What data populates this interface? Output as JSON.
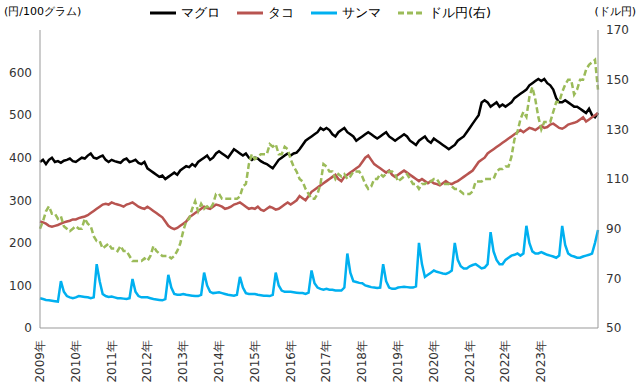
{
  "chart_data": {
    "type": "line",
    "ylabel": "(円/100グラム)",
    "y2label": "(ドル円)",
    "categories": [
      "2009年",
      null,
      null,
      null,
      null,
      null,
      null,
      null,
      null,
      null,
      null,
      null,
      "2010年",
      null,
      null,
      null,
      null,
      null,
      null,
      null,
      null,
      null,
      null,
      null,
      "2011年",
      null,
      null,
      null,
      null,
      null,
      null,
      null,
      null,
      null,
      null,
      null,
      "2012年",
      null,
      null,
      null,
      null,
      null,
      null,
      null,
      null,
      null,
      null,
      null,
      "2013年",
      null,
      null,
      null,
      null,
      null,
      null,
      null,
      null,
      null,
      null,
      null,
      "2014年",
      null,
      null,
      null,
      null,
      null,
      null,
      null,
      null,
      null,
      null,
      null,
      "2015年",
      null,
      null,
      null,
      null,
      null,
      null,
      null,
      null,
      null,
      null,
      null,
      "2016年",
      null,
      null,
      null,
      null,
      null,
      null,
      null,
      null,
      null,
      null,
      null,
      "2017年",
      null,
      null,
      null,
      null,
      null,
      null,
      null,
      null,
      null,
      null,
      null,
      "2018年",
      null,
      null,
      null,
      null,
      null,
      null,
      null,
      null,
      null,
      null,
      null,
      "2019年",
      null,
      null,
      null,
      null,
      null,
      null,
      null,
      null,
      null,
      null,
      null,
      "2020年",
      null,
      null,
      null,
      null,
      null,
      null,
      null,
      null,
      null,
      null,
      null,
      "2021年",
      null,
      null,
      null,
      null,
      null,
      null,
      null,
      null,
      null,
      null,
      null,
      "2022年",
      null,
      null,
      null,
      null,
      null,
      null,
      null,
      null,
      null,
      null,
      null,
      "2023年",
      null,
      null,
      null,
      null,
      null,
      null,
      null,
      null,
      null,
      null,
      null,
      null,
      null,
      null,
      null,
      null,
      null,
      null,
      null
    ],
    "series": [
      {
        "name": "マグロ",
        "color": "#000000",
        "line_style": "solid",
        "values": [
          390,
          395,
          385,
          395,
          400,
          390,
          392,
          388,
          393,
          395,
          398,
          392,
          390,
          395,
          400,
          398,
          405,
          410,
          400,
          398,
          402,
          405,
          395,
          390,
          395,
          392,
          390,
          388,
          395,
          398,
          390,
          392,
          395,
          388,
          385,
          390,
          375,
          370,
          365,
          360,
          355,
          358,
          350,
          355,
          360,
          365,
          360,
          370,
          375,
          380,
          378,
          385,
          380,
          390,
          395,
          400,
          405,
          395,
          400,
          410,
          415,
          410,
          405,
          400,
          410,
          420,
          415,
          410,
          405,
          410,
          400,
          395,
          400,
          398,
          392,
          388,
          385,
          380,
          375,
          385,
          395,
          400,
          405,
          410,
          405,
          410,
          412,
          420,
          430,
          440,
          445,
          450,
          455,
          460,
          470,
          465,
          470,
          465,
          455,
          450,
          460,
          465,
          470,
          460,
          455,
          450,
          440,
          445,
          450,
          455,
          460,
          455,
          450,
          445,
          450,
          455,
          460,
          450,
          445,
          440,
          445,
          450,
          455,
          450,
          440,
          435,
          430,
          440,
          445,
          450,
          440,
          435,
          445,
          440,
          435,
          430,
          425,
          420,
          425,
          430,
          440,
          445,
          450,
          460,
          470,
          480,
          490,
          500,
          530,
          535,
          530,
          520,
          525,
          530,
          520,
          525,
          520,
          525,
          530,
          540,
          545,
          550,
          555,
          560,
          570,
          575,
          580,
          585,
          580,
          585,
          575,
          570,
          560,
          540,
          530,
          530,
          535,
          530,
          525,
          520,
          520,
          515,
          510,
          505,
          515,
          500,
          495,
          505
        ]
      },
      {
        "name": "タコ",
        "color": "#b85450",
        "line_style": "solid",
        "values": [
          250,
          248,
          245,
          240,
          238,
          240,
          242,
          245,
          248,
          250,
          252,
          255,
          255,
          258,
          260,
          262,
          265,
          270,
          275,
          280,
          285,
          290,
          292,
          290,
          295,
          292,
          290,
          288,
          285,
          290,
          292,
          295,
          290,
          285,
          282,
          280,
          285,
          280,
          275,
          270,
          265,
          260,
          250,
          240,
          235,
          232,
          235,
          240,
          245,
          250,
          260,
          265,
          270,
          275,
          280,
          285,
          282,
          280,
          285,
          290,
          288,
          285,
          280,
          282,
          285,
          290,
          292,
          295,
          290,
          285,
          280,
          282,
          280,
          285,
          278,
          275,
          280,
          285,
          282,
          278,
          280,
          285,
          290,
          295,
          290,
          295,
          300,
          310,
          305,
          300,
          310,
          320,
          325,
          330,
          335,
          340,
          345,
          350,
          355,
          360,
          350,
          345,
          355,
          360,
          365,
          370,
          375,
          380,
          390,
          400,
          405,
          395,
          385,
          380,
          375,
          370,
          365,
          370,
          360,
          355,
          360,
          365,
          370,
          365,
          360,
          355,
          350,
          345,
          350,
          345,
          340,
          345,
          340,
          338,
          335,
          340,
          345,
          340,
          338,
          342,
          345,
          350,
          355,
          360,
          365,
          370,
          380,
          390,
          395,
          400,
          410,
          415,
          420,
          425,
          430,
          435,
          440,
          445,
          450,
          455,
          460,
          465,
          460,
          465,
          470,
          468,
          465,
          470,
          475,
          470,
          472,
          478,
          480,
          475,
          470,
          468,
          472,
          478,
          480,
          482,
          485,
          490,
          495,
          485,
          490,
          495,
          500,
          505
        ]
      },
      {
        "name": "サンマ",
        "color": "#00b0f0",
        "line_style": "solid",
        "values": [
          70,
          68,
          66,
          65,
          64,
          63,
          62,
          110,
          85,
          75,
          72,
          70,
          72,
          75,
          74,
          73,
          72,
          70,
          72,
          150,
          110,
          80,
          75,
          73,
          74,
          72,
          70,
          70,
          69,
          68,
          70,
          115,
          85,
          75,
          72,
          72,
          72,
          70,
          68,
          67,
          66,
          65,
          68,
          125,
          95,
          80,
          78,
          78,
          80,
          78,
          77,
          76,
          75,
          75,
          78,
          130,
          100,
          85,
          82,
          83,
          84,
          82,
          80,
          78,
          77,
          76,
          78,
          120,
          95,
          82,
          80,
          80,
          80,
          78,
          77,
          76,
          76,
          75,
          78,
          130,
          100,
          88,
          85,
          85,
          85,
          84,
          83,
          82,
          82,
          80,
          83,
          135,
          105,
          95,
          92,
          90,
          92,
          90,
          90,
          88,
          88,
          88,
          95,
          175,
          130,
          110,
          108,
          106,
          105,
          100,
          98,
          96,
          95,
          94,
          95,
          150,
          110,
          95,
          92,
          92,
          95,
          96,
          97,
          96,
          95,
          95,
          98,
          200,
          150,
          120,
          125,
          130,
          135,
          132,
          130,
          128,
          127,
          130,
          135,
          200,
          160,
          145,
          140,
          140,
          145,
          148,
          150,
          145,
          140,
          142,
          150,
          225,
          180,
          160,
          150,
          150,
          160,
          165,
          170,
          172,
          175,
          170,
          175,
          240,
          200,
          180,
          175,
          175,
          178,
          175,
          172,
          170,
          168,
          165,
          170,
          240,
          195,
          175,
          170,
          168,
          165,
          165,
          168,
          170,
          172,
          175,
          200,
          230
        ]
      },
      {
        "name": "ドル円(右)",
        "color": "#9bbb59",
        "line_style": "dashed",
        "axis": "y2",
        "values": [
          90,
          93,
          97,
          99,
          96,
          96,
          94,
          95,
          91,
          90,
          89,
          90,
          91,
          90,
          90,
          94,
          92,
          91,
          87,
          85,
          85,
          82,
          83,
          84,
          82,
          82,
          81,
          83,
          81,
          81,
          79,
          77,
          77,
          77,
          77,
          78,
          77,
          79,
          83,
          81,
          80,
          79,
          79,
          79,
          78,
          79,
          81,
          84,
          89,
          93,
          94,
          98,
          101,
          97,
          100,
          98,
          99,
          98,
          100,
          104,
          104,
          102,
          102,
          102,
          102,
          102,
          102,
          103,
          107,
          108,
          116,
          120,
          118,
          119,
          120,
          120,
          120,
          124,
          123,
          124,
          120,
          120,
          123,
          122,
          118,
          115,
          113,
          110,
          109,
          106,
          104,
          102,
          102,
          104,
          108,
          116,
          115,
          113,
          113,
          110,
          112,
          111,
          112,
          110,
          111,
          113,
          113,
          113,
          111,
          108,
          106,
          107,
          110,
          110,
          112,
          111,
          112,
          113,
          113,
          112,
          109,
          110,
          111,
          112,
          110,
          108,
          108,
          106,
          108,
          108,
          109,
          109,
          110,
          110,
          108,
          108,
          108,
          108,
          107,
          106,
          106,
          105,
          104,
          104,
          104,
          105,
          109,
          109,
          109,
          110,
          110,
          110,
          110,
          113,
          114,
          114,
          115,
          115,
          119,
          126,
          129,
          134,
          137,
          135,
          143,
          147,
          142,
          135,
          130,
          133,
          133,
          133,
          137,
          141,
          141,
          145,
          148,
          150,
          150,
          144,
          146,
          150,
          150,
          154,
          156,
          157,
          158,
          146
        ]
      }
    ],
    "ylim": [
      0,
      700
    ],
    "yticks": [
      0,
      100,
      200,
      300,
      400,
      500,
      600
    ],
    "y2lim": [
      50,
      170
    ],
    "y2ticks": [
      50,
      70,
      90,
      110,
      130,
      150,
      170
    ],
    "grid": false,
    "legend": "top"
  }
}
